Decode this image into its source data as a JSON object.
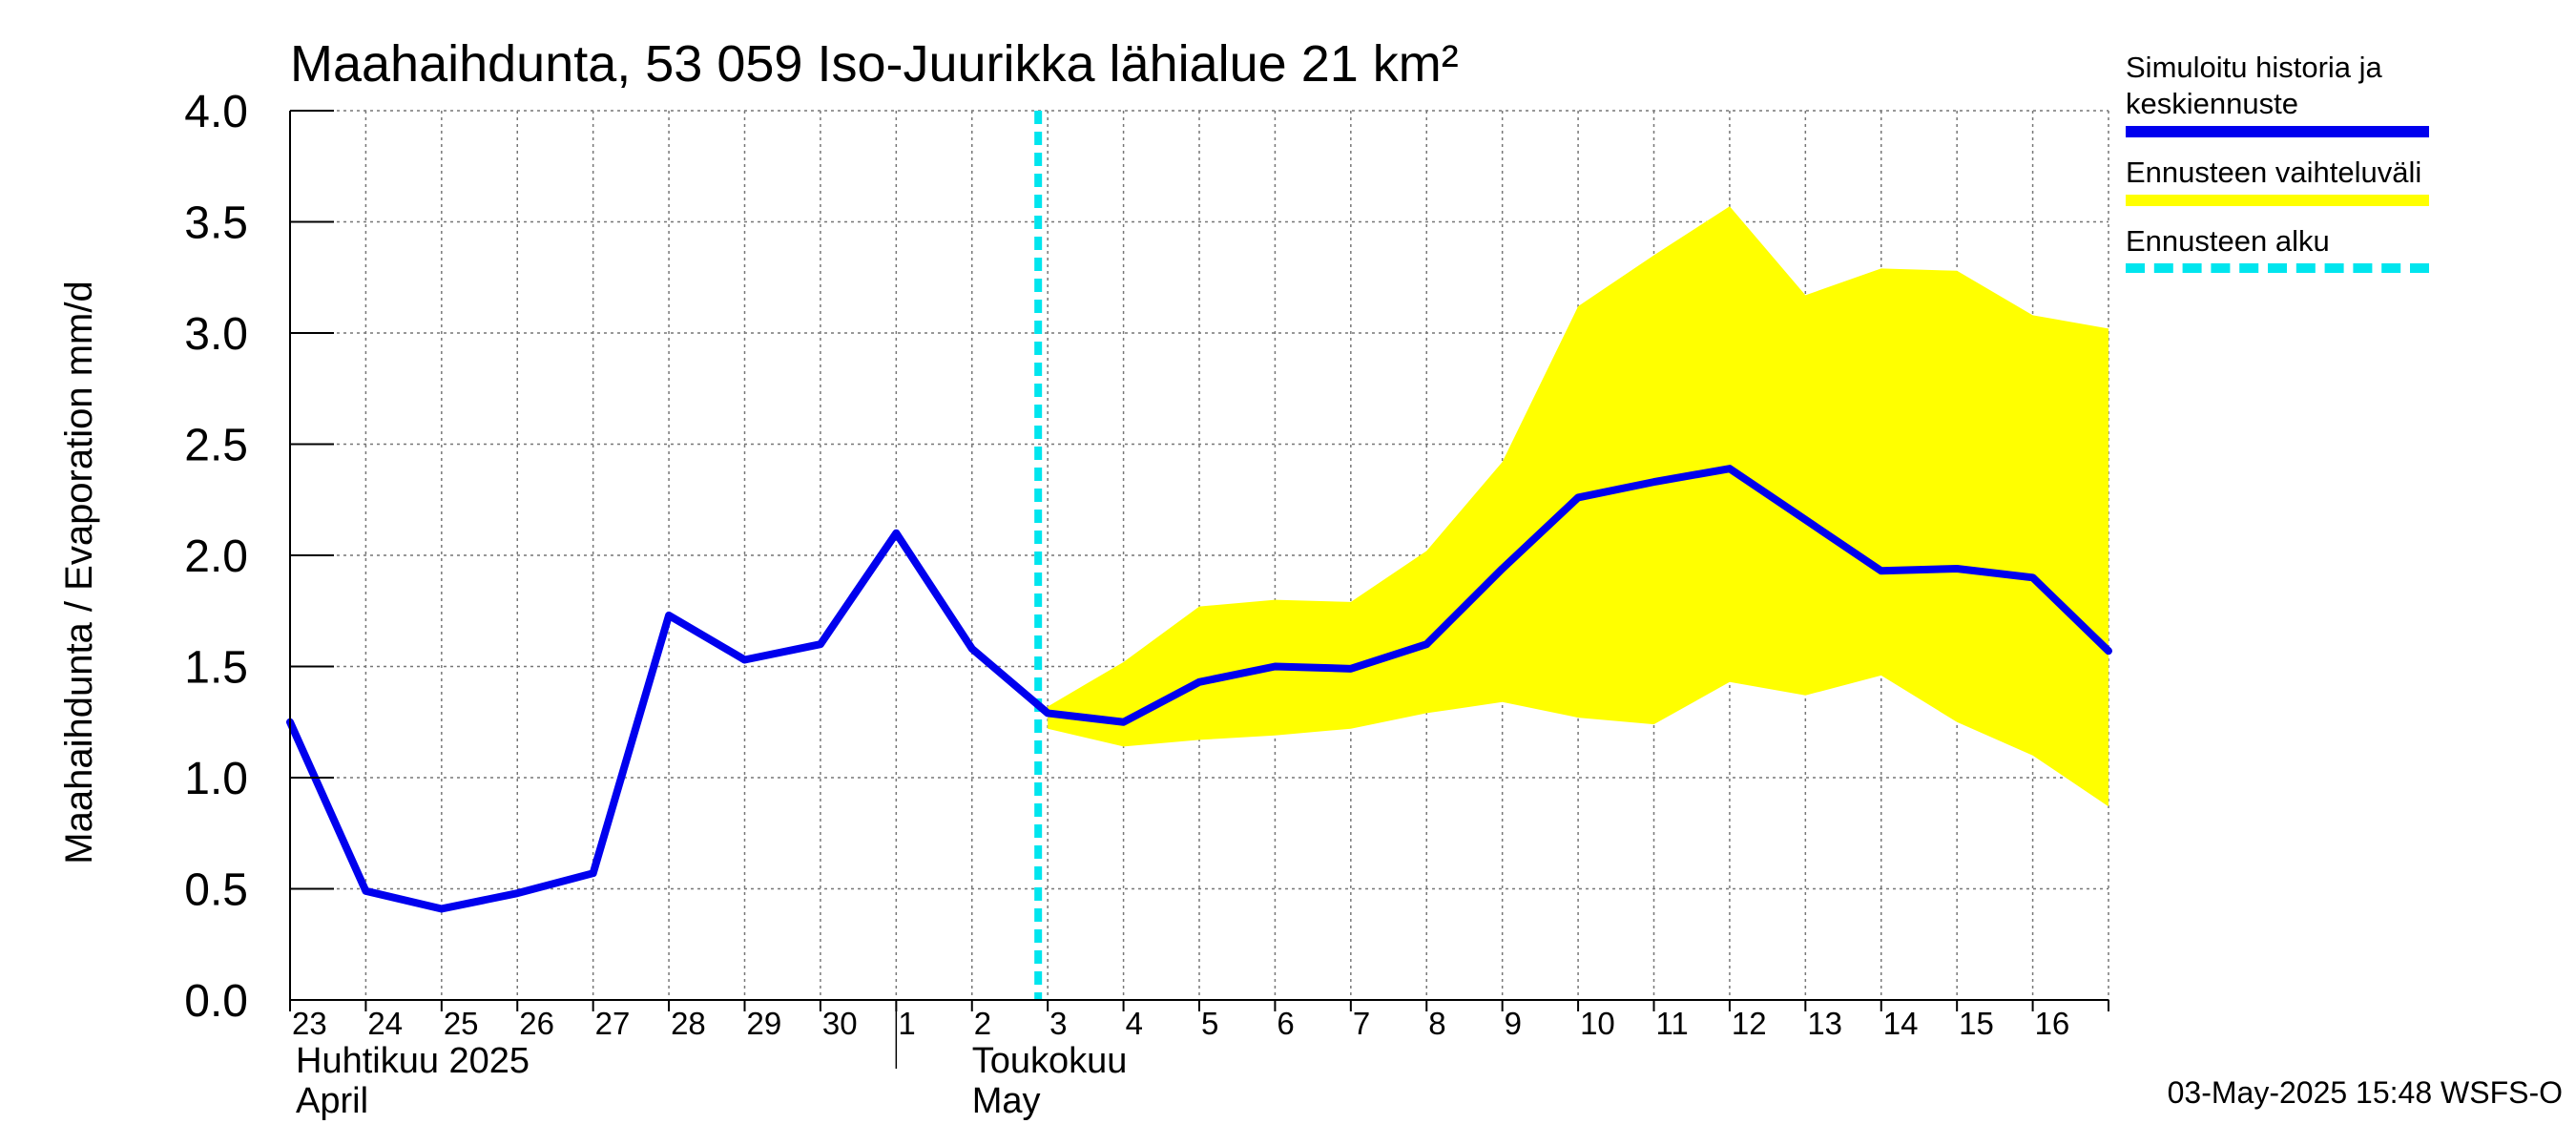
{
  "chart_data": {
    "type": "line",
    "title": "Maahaihdunta, 53 059 Iso-Juurikka lähialue 21 km²",
    "ylabel": "Maahaihdunta / Evaporation   mm/d",
    "ylim": [
      0,
      4.0
    ],
    "yticks": [
      "0.0",
      "0.5",
      "1.0",
      "1.5",
      "2.0",
      "2.5",
      "3.0",
      "3.5",
      "4.0"
    ],
    "grid": true,
    "x_tick_labels": [
      "23",
      "24",
      "25",
      "26",
      "27",
      "28",
      "29",
      "30",
      "1",
      "2",
      "3",
      "4",
      "5",
      "6",
      "7",
      "8",
      "9",
      "10",
      "11",
      "12",
      "13",
      "14",
      "15",
      "16"
    ],
    "x_dates": [
      "2025-04-23",
      "2025-04-24",
      "2025-04-25",
      "2025-04-26",
      "2025-04-27",
      "2025-04-28",
      "2025-04-29",
      "2025-04-30",
      "2025-05-01",
      "2025-05-02",
      "2025-05-03",
      "2025-05-04",
      "2025-05-05",
      "2025-05-06",
      "2025-05-07",
      "2025-05-08",
      "2025-05-09",
      "2025-05-10",
      "2025-05-11",
      "2025-05-12",
      "2025-05-13",
      "2025-05-14",
      "2025-05-15",
      "2025-05-16",
      "2025-05-17"
    ],
    "month_labels": [
      {
        "fi": "Huhtikuu  2025",
        "en": "April"
      },
      {
        "fi": "Toukokuu",
        "en": "May"
      }
    ],
    "series": [
      {
        "name": "Simuloitu historia ja keskiennuste",
        "color": "#0000ee",
        "x": [
          "2025-04-23",
          "2025-04-24",
          "2025-04-25",
          "2025-04-26",
          "2025-04-27",
          "2025-04-28",
          "2025-04-29",
          "2025-04-30",
          "2025-05-01",
          "2025-05-02",
          "2025-05-03",
          "2025-05-04",
          "2025-05-05",
          "2025-05-06",
          "2025-05-07",
          "2025-05-08",
          "2025-05-09",
          "2025-05-10",
          "2025-05-11",
          "2025-05-12",
          "2025-05-13",
          "2025-05-14",
          "2025-05-15",
          "2025-05-16",
          "2025-05-17"
        ],
        "values": [
          1.25,
          0.49,
          0.41,
          0.48,
          0.57,
          1.73,
          1.53,
          1.6,
          2.1,
          1.58,
          1.29,
          1.25,
          1.43,
          1.5,
          1.49,
          1.6,
          1.94,
          2.26,
          2.33,
          2.39,
          2.16,
          1.93,
          1.94,
          1.9,
          1.57
        ]
      },
      {
        "name": "Ennusteen vaihteluväli",
        "color": "#ffff00",
        "type": "area",
        "x": [
          "2025-05-03",
          "2025-05-04",
          "2025-05-05",
          "2025-05-06",
          "2025-05-07",
          "2025-05-08",
          "2025-05-09",
          "2025-05-10",
          "2025-05-11",
          "2025-05-12",
          "2025-05-13",
          "2025-05-14",
          "2025-05-15",
          "2025-05-16",
          "2025-05-17"
        ],
        "upper": [
          1.32,
          1.52,
          1.77,
          1.8,
          1.79,
          2.02,
          2.42,
          3.12,
          3.35,
          3.57,
          3.17,
          3.29,
          3.28,
          3.08,
          3.02
        ],
        "lower": [
          1.22,
          1.14,
          1.17,
          1.19,
          1.22,
          1.29,
          1.34,
          1.27,
          1.24,
          1.43,
          1.37,
          1.46,
          1.25,
          1.1,
          0.87
        ]
      }
    ],
    "forecast_start": "2025-05-03",
    "forecast_start_color": "#00e5ee"
  },
  "legend": {
    "items": [
      {
        "label_line1": "Simuloitu historia ja",
        "label_line2": "keskiennuste",
        "color": "#0000ee",
        "style": "solid"
      },
      {
        "label_line1": "Ennusteen vaihteluväli",
        "color": "#ffff00",
        "style": "solid"
      },
      {
        "label_line1": "Ennusteen alku",
        "color": "#00e5ee",
        "style": "dashed"
      }
    ]
  },
  "footer": "03-May-2025 15:48 WSFS-O"
}
